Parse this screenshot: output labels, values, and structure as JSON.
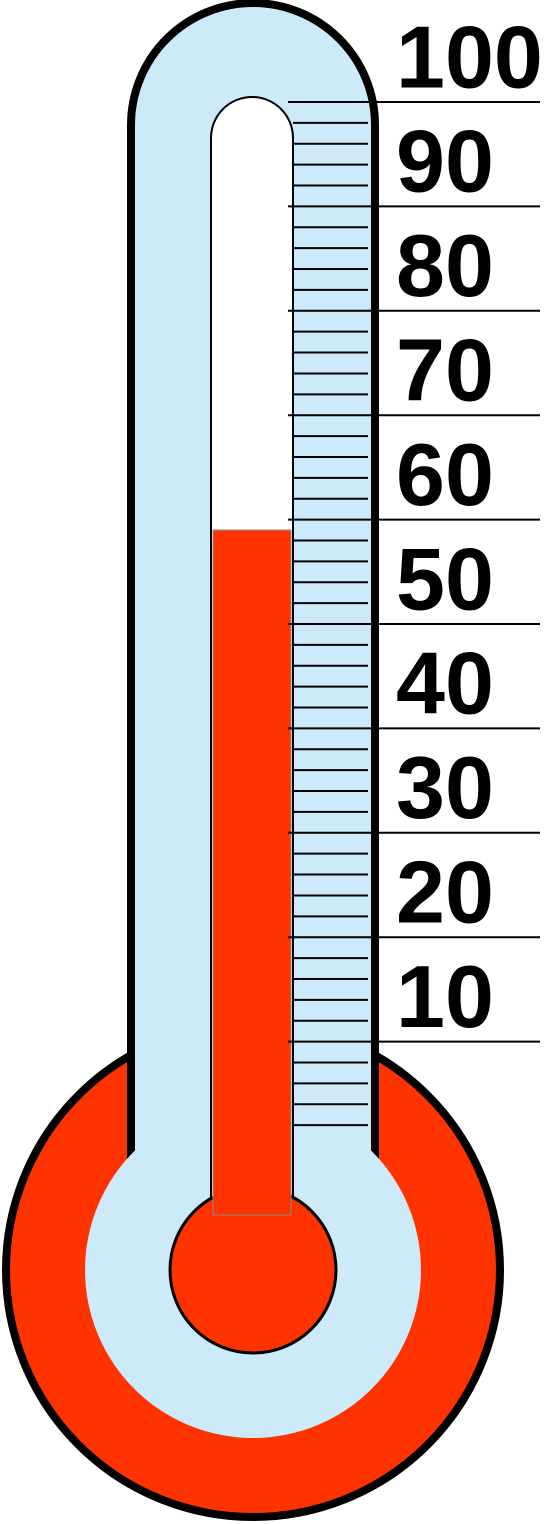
{
  "chart_data": {
    "type": "thermometer",
    "value": 59,
    "color": "#ff3300",
    "ylim": [
      0,
      100
    ],
    "yticks": [
      10,
      20,
      30,
      40,
      50,
      60,
      70,
      80,
      90,
      100
    ],
    "minor_yticks": [
      2,
      4,
      6,
      8,
      12,
      14,
      16,
      18,
      22,
      24,
      26,
      28,
      32,
      34,
      36,
      38,
      42,
      44,
      46,
      48,
      52,
      54,
      56,
      58,
      62,
      64,
      66,
      68,
      72,
      74,
      76,
      78,
      82,
      84,
      86,
      88,
      92,
      94,
      96,
      98
    ]
  }
}
